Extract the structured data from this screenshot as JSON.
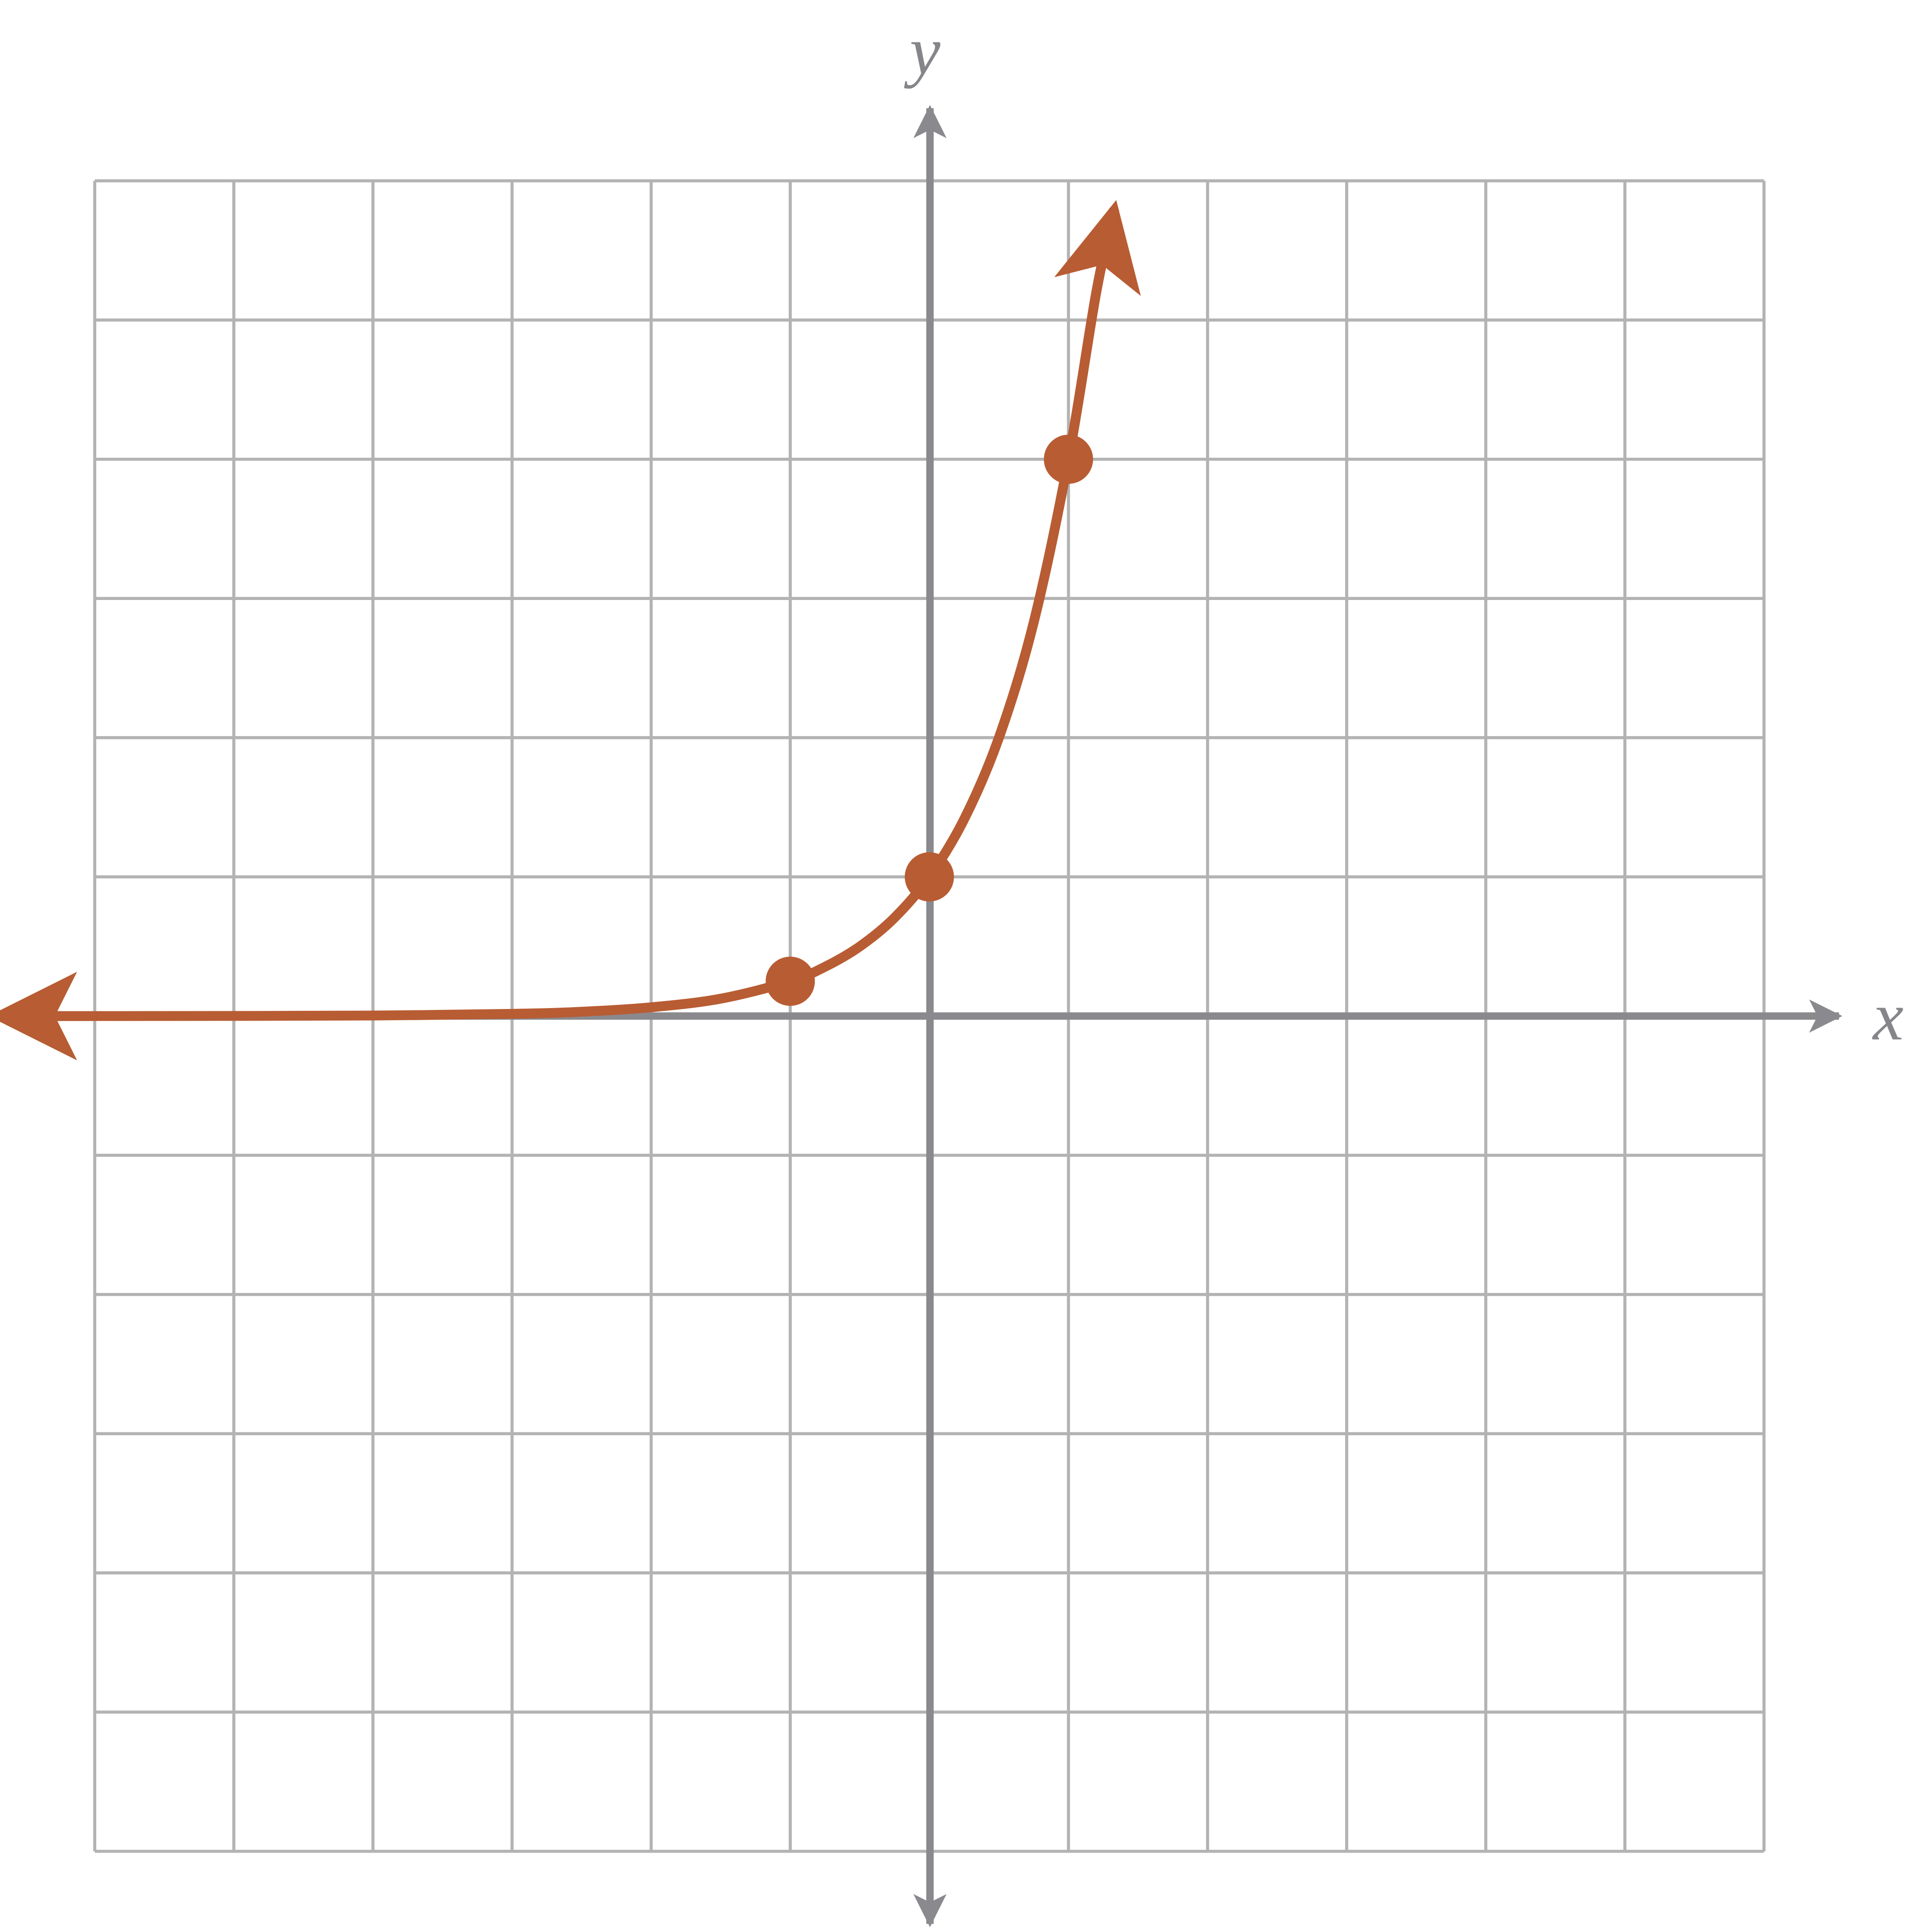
{
  "chart_data": {
    "type": "line",
    "x_label": "x",
    "y_label": "y",
    "xlim": [
      -6,
      6
    ],
    "ylim": [
      -6,
      6
    ],
    "xticks": [
      -6,
      -5,
      -4,
      -3,
      -2,
      -1,
      0,
      1,
      2,
      3,
      4,
      5,
      6
    ],
    "yticks": [
      -6,
      -5,
      -4,
      -3,
      -2,
      -1,
      0,
      1,
      2,
      3,
      4,
      5,
      6
    ],
    "grid": true,
    "color": "#b85c33",
    "curve": {
      "x": [
        -6.7,
        -6,
        -5,
        -4,
        -3,
        -2.5,
        -2,
        -1.5,
        -1,
        -0.75,
        -0.5,
        -0.25,
        0,
        0.25,
        0.5,
        0.75,
        1,
        1.2,
        1.33
      ],
      "values": [
        0,
        0,
        0.001,
        0.004,
        0.016,
        0.031,
        0.063,
        0.125,
        0.25,
        0.354,
        0.5,
        0.707,
        1,
        1.414,
        2,
        2.828,
        4,
        5.2,
        5.8
      ]
    },
    "points": {
      "x": [
        -1,
        0,
        1
      ],
      "values": [
        0.25,
        1,
        4
      ]
    }
  }
}
